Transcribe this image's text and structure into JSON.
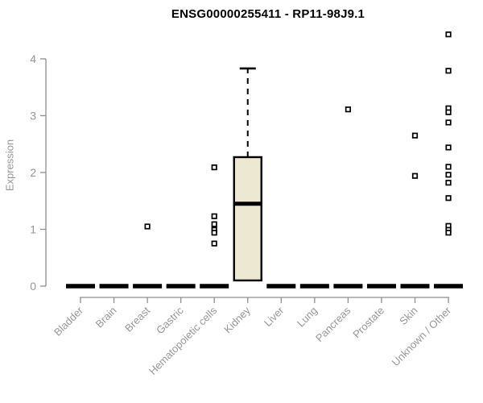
{
  "chart_data": {
    "type": "boxplot",
    "title": "ENSG00000255411 - RP11-98J9.1",
    "ylabel": "Expression",
    "xlabel": "",
    "ylim": [
      0,
      4
    ],
    "yticks": [
      0,
      1,
      2,
      3,
      4
    ],
    "grid": false,
    "legend": "none",
    "categories": [
      "Bladder",
      "Brain",
      "Breast",
      "Gastric",
      "Hematopoietic cells",
      "Kidney",
      "Liver",
      "Lung",
      "Pancreas",
      "Prostate",
      "Skin",
      "Unknown / Other"
    ],
    "boxes": [
      {
        "category": "Bladder",
        "min": 0,
        "q1": 0,
        "median": 0,
        "q3": 0,
        "max": 0,
        "outliers": []
      },
      {
        "category": "Brain",
        "min": 0,
        "q1": 0,
        "median": 0,
        "q3": 0,
        "max": 0,
        "outliers": []
      },
      {
        "category": "Breast",
        "min": 0,
        "q1": 0,
        "median": 0,
        "q3": 0,
        "max": 0,
        "outliers": [
          1.05
        ]
      },
      {
        "category": "Gastric",
        "min": 0,
        "q1": 0,
        "median": 0,
        "q3": 0,
        "max": 0,
        "outliers": []
      },
      {
        "category": "Hematopoietic cells",
        "min": 0,
        "q1": 0,
        "median": 0,
        "q3": 0,
        "max": 0,
        "outliers": [
          2.09,
          1.23,
          1.09,
          0.99,
          0.94,
          0.75
        ]
      },
      {
        "category": "Kidney",
        "min": 0.1,
        "q1": 0.1,
        "median": 1.45,
        "q3": 2.27,
        "max": 3.83,
        "outliers": []
      },
      {
        "category": "Liver",
        "min": 0,
        "q1": 0,
        "median": 0,
        "q3": 0,
        "max": 0,
        "outliers": []
      },
      {
        "category": "Lung",
        "min": 0,
        "q1": 0,
        "median": 0,
        "q3": 0,
        "max": 0,
        "outliers": []
      },
      {
        "category": "Pancreas",
        "min": 0,
        "q1": 0,
        "median": 0,
        "q3": 0,
        "max": 0,
        "outliers": [
          3.11
        ]
      },
      {
        "category": "Prostate",
        "min": 0,
        "q1": 0,
        "median": 0,
        "q3": 0,
        "max": 0,
        "outliers": []
      },
      {
        "category": "Skin",
        "min": 0,
        "q1": 0,
        "median": 0,
        "q3": 0,
        "max": 0,
        "outliers": [
          2.65,
          1.94
        ]
      },
      {
        "category": "Unknown / Other",
        "min": 0,
        "q1": 0,
        "median": 0,
        "q3": 0,
        "max": 0,
        "outliers": [
          4.43,
          3.79,
          3.13,
          3.06,
          2.88,
          2.44,
          2.1,
          1.96,
          1.82,
          1.55,
          1.06,
          0.99,
          0.94
        ]
      }
    ],
    "colors": {
      "title": "#000000",
      "box_fill": "#EDE8D1",
      "box_stroke": "#000000",
      "median": "#000000",
      "whisker": "#000000",
      "outlier_stroke": "#000000",
      "outlier_fill": "#FFFFFF",
      "axis": "#8F8F8F",
      "tick_label": "#969696"
    }
  }
}
